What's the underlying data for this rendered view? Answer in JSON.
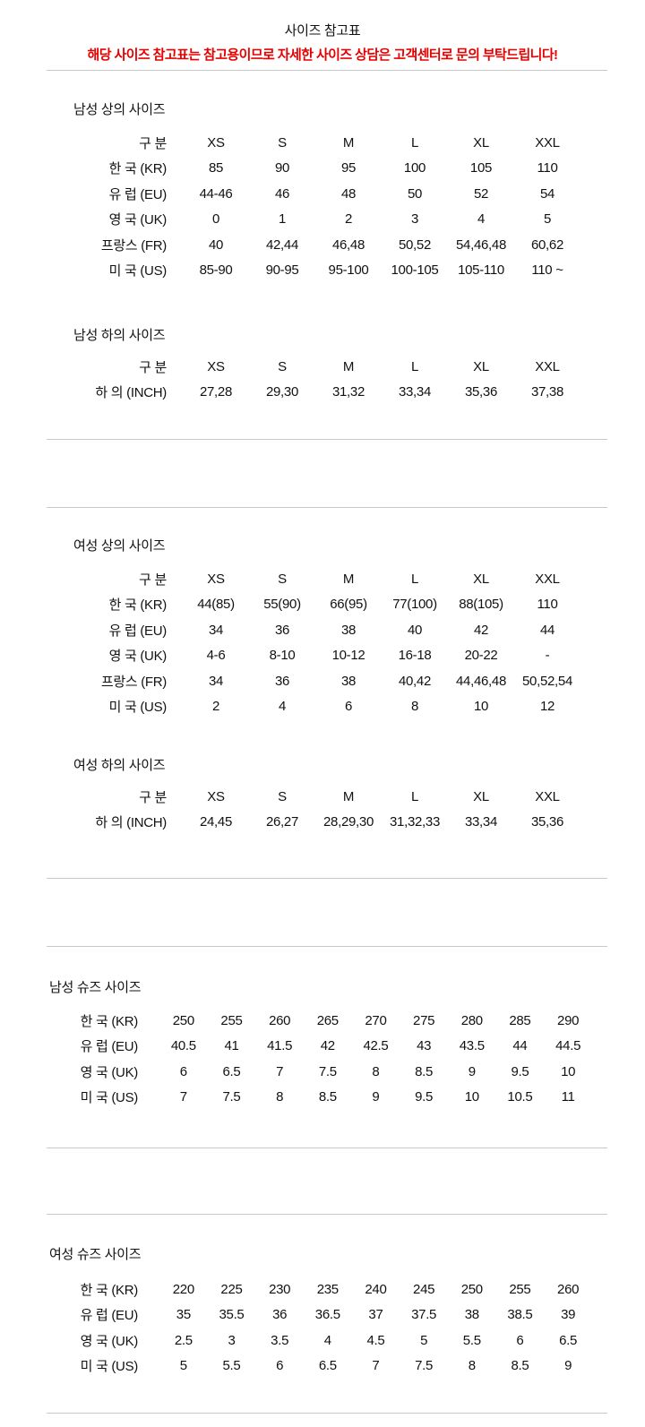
{
  "page": {
    "title": "사이즈 참고표",
    "notice": "해당 사이즈 참고표는 참고용이므로 자세한 사이즈 상담은 고객센터로 문의 부탁드립니다!"
  },
  "colors": {
    "notice_red": "#e60000",
    "divider": "#c9c9c9",
    "text": "#111111"
  },
  "sections": [
    {
      "heading": "남성 상의 사이즈",
      "rows": [
        [
          "구 분",
          "XS",
          "S",
          "M",
          "L",
          "XL",
          "XXL"
        ],
        [
          "한 국 (KR)",
          "85",
          "90",
          "95",
          "100",
          "105",
          "110"
        ],
        [
          "유 럽 (EU)",
          "44-46",
          "46",
          "48",
          "50",
          "52",
          "54"
        ],
        [
          "영 국 (UK)",
          "0",
          "1",
          "2",
          "3",
          "4",
          "5"
        ],
        [
          "프랑스 (FR)",
          "40",
          "42,44",
          "46,48",
          "50,52",
          "54,46,48",
          "60,62"
        ],
        [
          "미 국 (US)",
          "85-90",
          "90-95",
          "95-100",
          "100-105",
          "105-110",
          "110 ~"
        ]
      ]
    },
    {
      "heading": "남성 하의 사이즈",
      "rows": [
        [
          "구 분",
          "XS",
          "S",
          "M",
          "L",
          "XL",
          "XXL"
        ],
        [
          "하 의 (INCH)",
          "27,28",
          "29,30",
          "31,32",
          "33,34",
          "35,36",
          "37,38"
        ]
      ]
    },
    {
      "heading": "여성 상의 사이즈",
      "rows": [
        [
          "구 분",
          "XS",
          "S",
          "M",
          "L",
          "XL",
          "XXL"
        ],
        [
          "한 국 (KR)",
          "44(85)",
          "55(90)",
          "66(95)",
          "77(100)",
          "88(105)",
          "110"
        ],
        [
          "유 럽 (EU)",
          "34",
          "36",
          "38",
          "40",
          "42",
          "44"
        ],
        [
          "영 국 (UK)",
          "4-6",
          "8-10",
          "10-12",
          "16-18",
          "20-22",
          "-"
        ],
        [
          "프랑스 (FR)",
          "34",
          "36",
          "38",
          "40,42",
          "44,46,48",
          "50,52,54"
        ],
        [
          "미 국 (US)",
          "2",
          "4",
          "6",
          "8",
          "10",
          "12"
        ]
      ]
    },
    {
      "heading": "여성 하의 사이즈",
      "rows": [
        [
          "구 분",
          "XS",
          "S",
          "M",
          "L",
          "XL",
          "XXL"
        ],
        [
          "하 의 (INCH)",
          "24,45",
          "26,27",
          "28,29,30",
          "31,32,33",
          "33,34",
          "35,36"
        ]
      ]
    },
    {
      "heading": "남성 슈즈 사이즈",
      "rows": [
        [
          "한 국 (KR)",
          "250",
          "255",
          "260",
          "265",
          "270",
          "275",
          "280",
          "285",
          "290"
        ],
        [
          "유 럽 (EU)",
          "40.5",
          "41",
          "41.5",
          "42",
          "42.5",
          "43",
          "43.5",
          "44",
          "44.5"
        ],
        [
          "영 국 (UK)",
          "6",
          "6.5",
          "7",
          "7.5",
          "8",
          "8.5",
          "9",
          "9.5",
          "10"
        ],
        [
          "미 국 (US)",
          "7",
          "7.5",
          "8",
          "8.5",
          "9",
          "9.5",
          "10",
          "10.5",
          "11"
        ]
      ]
    },
    {
      "heading": "여성 슈즈 사이즈",
      "rows": [
        [
          "한 국 (KR)",
          "220",
          "225",
          "230",
          "235",
          "240",
          "245",
          "250",
          "255",
          "260"
        ],
        [
          "유 럽 (EU)",
          "35",
          "35.5",
          "36",
          "36.5",
          "37",
          "37.5",
          "38",
          "38.5",
          "39"
        ],
        [
          "영 국 (UK)",
          "2.5",
          "3",
          "3.5",
          "4",
          "4.5",
          "5",
          "5.5",
          "6",
          "6.5"
        ],
        [
          "미 국 (US)",
          "5",
          "5.5",
          "6",
          "6.5",
          "7",
          "7.5",
          "8",
          "8.5",
          "9"
        ]
      ]
    }
  ]
}
